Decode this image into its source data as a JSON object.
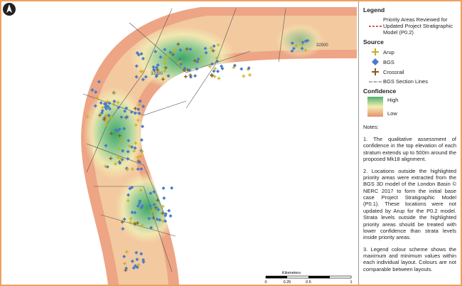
{
  "map": {
    "labels": [
      "32500",
      "32000"
    ],
    "scale_bar": {
      "title": "Kilometers",
      "ticks": [
        "0",
        "0.25",
        "0.5",
        "1"
      ]
    }
  },
  "legend": {
    "title": "Legend",
    "priority": "Priority Areas Reviewed for Updated Project Stratigraphic Model (P0.2)",
    "source_heading": "Source",
    "sources": [
      "Arup",
      "BGS",
      "Crossrail"
    ],
    "section_lines": "BGS Section Lines",
    "confidence_heading": "Confidence",
    "high": "High",
    "low": "Low"
  },
  "notes": {
    "heading": "Notes:",
    "items": [
      "1. The qualitative assessment of confidence in the top elevation of each stratum extends up to 500m around the proposed Mk18 alignment.",
      "2. Locations outside the highlighted priority areas were extracted from the BGS 3D model of the London Basin © NERC 2017 to form the initial base case Project Stratigraphic Model (P0.1). These locations were not updated by Arup for the P0.2 model. Strata levels outside the highlighted priority areas should be treated with lower confidence than strata levels inside priority areas.",
      "3. Legend colour scheme shows the maximum and minimum values within each individual layout. Colours are not comparable between layouts."
    ]
  }
}
